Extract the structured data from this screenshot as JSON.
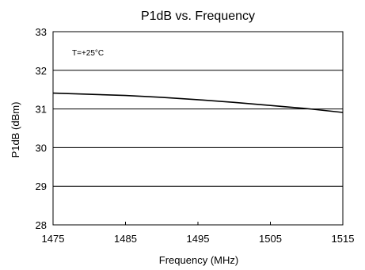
{
  "chart_data": {
    "type": "line",
    "title": "P1dB vs. Frequency",
    "xlabel": "Frequency (MHz)",
    "ylabel": "P1dB (dBm)",
    "xlim": [
      1475,
      1515
    ],
    "ylim": [
      28,
      33
    ],
    "x_ticks": [
      "1475",
      "1485",
      "1495",
      "1505",
      "1515"
    ],
    "y_ticks": [
      "28",
      "29",
      "30",
      "31",
      "32",
      "33"
    ],
    "annotation": "T=+25°C",
    "grid": "horizontal",
    "series": [
      {
        "x": [
          1475,
          1480,
          1485,
          1490,
          1495,
          1500,
          1505,
          1510,
          1515
        ],
        "y": [
          31.41,
          31.38,
          31.35,
          31.3,
          31.24,
          31.17,
          31.09,
          31.01,
          30.91
        ],
        "color": "#000000"
      }
    ]
  }
}
